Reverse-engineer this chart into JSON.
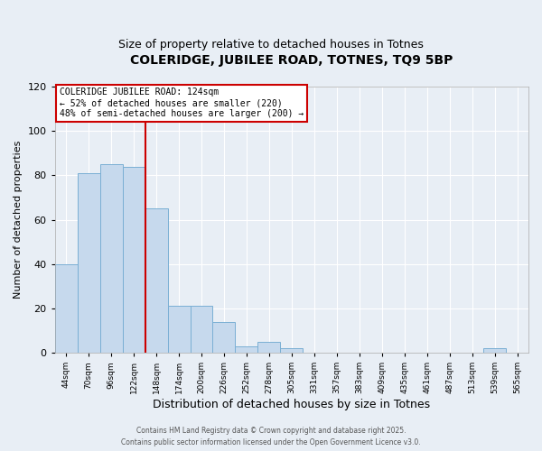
{
  "title": "COLERIDGE, JUBILEE ROAD, TOTNES, TQ9 5BP",
  "subtitle": "Size of property relative to detached houses in Totnes",
  "xlabel": "Distribution of detached houses by size in Totnes",
  "ylabel": "Number of detached properties",
  "bins": [
    "44sqm",
    "70sqm",
    "96sqm",
    "122sqm",
    "148sqm",
    "174sqm",
    "200sqm",
    "226sqm",
    "252sqm",
    "278sqm",
    "305sqm",
    "331sqm",
    "357sqm",
    "383sqm",
    "409sqm",
    "435sqm",
    "461sqm",
    "487sqm",
    "513sqm",
    "539sqm",
    "565sqm"
  ],
  "values": [
    40,
    81,
    85,
    84,
    65,
    21,
    21,
    14,
    3,
    5,
    2,
    0,
    0,
    0,
    0,
    0,
    0,
    0,
    0,
    2,
    0
  ],
  "bar_color": "#c6d9ed",
  "bar_edge_color": "#7aafd4",
  "vline_color": "#cc0000",
  "annotation_title": "COLERIDGE JUBILEE ROAD: 124sqm",
  "annotation_line1": "← 52% of detached houses are smaller (220)",
  "annotation_line2": "48% of semi-detached houses are larger (200) →",
  "annotation_box_edgecolor": "#cc0000",
  "ylim": [
    0,
    120
  ],
  "yticks": [
    0,
    20,
    40,
    60,
    80,
    100,
    120
  ],
  "footer1": "Contains HM Land Registry data © Crown copyright and database right 2025.",
  "footer2": "Contains public sector information licensed under the Open Government Licence v3.0.",
  "background_color": "#e8eef5",
  "plot_bg_color": "#e8eef5",
  "grid_color": "#ffffff",
  "title_fontsize": 10,
  "subtitle_fontsize": 9,
  "vline_bin_index": 3
}
